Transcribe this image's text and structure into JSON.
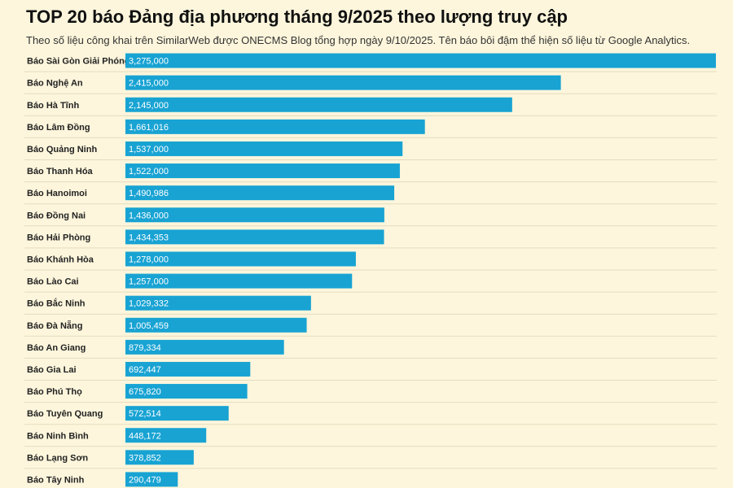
{
  "chart_data": {
    "type": "bar",
    "orientation": "horizontal",
    "title": "TOP 20 báo Đảng địa phương tháng 9/2025 theo lượng truy cập",
    "subtitle": "Theo số liệu công khai trên SimilarWeb được ONECMS Blog tổng hợp ngày 9/10/2025. Tên báo bôi đậm thể hiện số liệu từ Google Analytics.",
    "categories": [
      "Báo Sài Gòn Giải Phóng",
      "Báo Nghệ An",
      "Báo Hà Tĩnh",
      "Báo Lâm Đồng",
      "Báo Quảng Ninh",
      "Báo Thanh Hóa",
      "Báo Hanoimoi",
      "Báo Đồng Nai",
      "Báo Hải Phòng",
      "Báo Khánh Hòa",
      "Báo Lào Cai",
      "Báo Bắc Ninh",
      "Báo Đà Nẵng",
      "Báo An Giang",
      "Báo Gia Lai",
      "Báo Phú Thọ",
      "Báo Tuyên Quang",
      "Báo Ninh Bình",
      "Báo Lạng Sơn",
      "Báo Tây Ninh"
    ],
    "values": [
      3275000,
      2415000,
      2145000,
      1661016,
      1537000,
      1522000,
      1490986,
      1436000,
      1434353,
      1278000,
      1257000,
      1029332,
      1005459,
      879334,
      692447,
      675820,
      572514,
      448172,
      378852,
      290479
    ],
    "value_labels": [
      "3,275,000",
      "2,415,000",
      "2,145,000",
      "1,661,016",
      "1,537,000",
      "1,522,000",
      "1,490,986",
      "1,436,000",
      "1,434,353",
      "1,278,000",
      "1,257,000",
      "1,029,332",
      "1,005,459",
      "879,334",
      "692,447",
      "675,820",
      "572,514",
      "448,172",
      "378,852",
      "290,479"
    ],
    "xlim": [
      0,
      3275000
    ],
    "bar_color": "#18a3d3",
    "background_color": "#fdf6dc",
    "xlabel": "",
    "ylabel": ""
  }
}
